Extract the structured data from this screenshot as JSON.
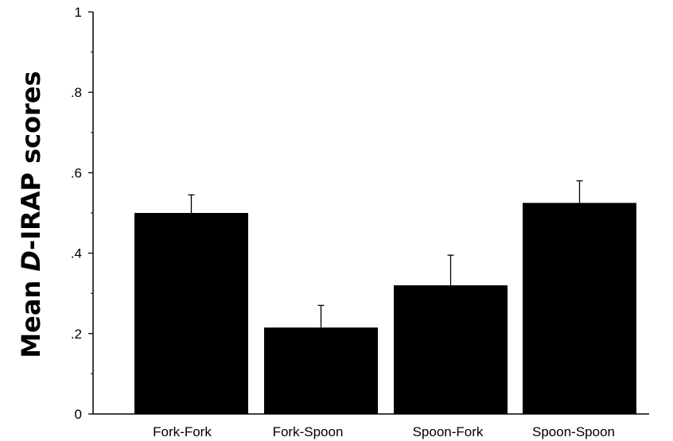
{
  "chart_data": {
    "type": "bar",
    "title": "",
    "xlabel": "",
    "ylabel": {
      "prefix": "Mean ",
      "italic": "D",
      "suffix": "-IRAP scores"
    },
    "ylim": [
      0,
      1
    ],
    "yticks": [
      {
        "value": 0,
        "label": "0"
      },
      {
        "value": 0.2,
        "label": ".2"
      },
      {
        "value": 0.4,
        "label": ".4"
      },
      {
        "value": 0.6,
        "label": ".6"
      },
      {
        "value": 0.8,
        "label": ".8"
      },
      {
        "value": 1,
        "label": "1"
      }
    ],
    "yminor_ticks": [
      0.1,
      0.3,
      0.5,
      0.7,
      0.9
    ],
    "categories": [
      "Fork-Fork",
      "Fork-Spoon",
      "Spoon-Fork",
      "Spoon-Spoon"
    ],
    "values": [
      0.5,
      0.215,
      0.32,
      0.525
    ],
    "error_upper": [
      0.545,
      0.27,
      0.395,
      0.58
    ],
    "grid": false,
    "legend": "none",
    "bar_color": "#000000"
  }
}
